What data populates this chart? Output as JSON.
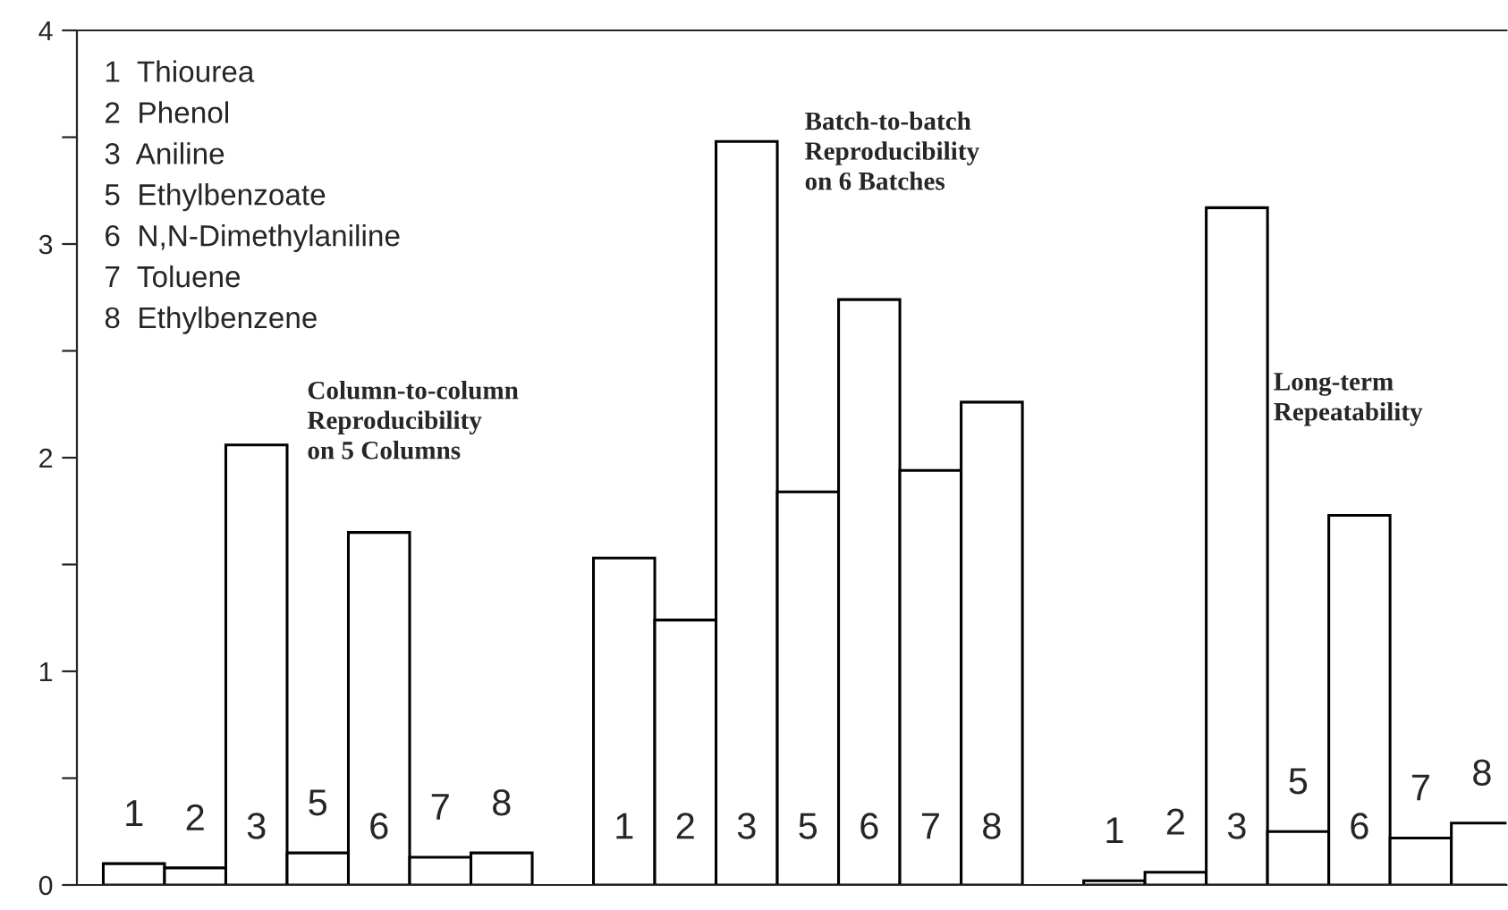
{
  "chart_data": {
    "type": "bar",
    "categories": [
      "1",
      "2",
      "3",
      "5",
      "6",
      "7",
      "8",
      null,
      "1",
      "2",
      "3",
      "5",
      "6",
      "7",
      "8",
      null,
      "1",
      "2",
      "3",
      "5",
      "6",
      "7",
      "8"
    ],
    "series": [
      {
        "color": "#ffffff",
        "values": [
          0.1,
          0.08,
          2.06,
          0.15,
          1.65,
          0.13,
          0.15,
          null,
          1.53,
          1.24,
          3.48,
          1.84,
          2.74,
          1.94,
          2.26,
          null,
          0.02,
          0.06,
          3.17,
          0.25,
          1.73,
          0.22,
          0.29
        ]
      }
    ],
    "ylim": [
      0,
      4
    ],
    "yticks": [
      0,
      {
        "value": 0.5,
        "label": null
      },
      1,
      {
        "value": 1.5,
        "label": null
      },
      2,
      {
        "value": 2.5,
        "label": null
      },
      3,
      {
        "value": 3.5,
        "label": null
      },
      4
    ],
    "tick_labels": "y",
    "grid": false,
    "legend": false,
    "annotations": [
      "1  Thiourea",
      "2  Phenol",
      "3  Aniline",
      "5  Ethylbenzoate",
      "6  N,N-Dimethylaniline",
      "7  Toluene",
      "8  Ethylbenzene",
      "Column-to-column\nReproducibility\non 5 Columns",
      "Batch-to-batch\nReproducibility\non 6 Batches",
      "Long-term\nRepeatability"
    ]
  }
}
